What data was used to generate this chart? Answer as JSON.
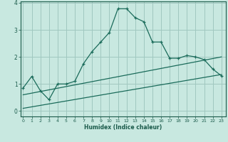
{
  "xlabel": "Humidex (Indice chaleur)",
  "background_color": "#c8e8e0",
  "line_color": "#1a6b5a",
  "grid_color": "#a0c8c0",
  "x_ticks": [
    0,
    1,
    2,
    3,
    4,
    5,
    6,
    7,
    8,
    9,
    10,
    11,
    12,
    13,
    14,
    15,
    16,
    17,
    18,
    19,
    20,
    21,
    22,
    23
  ],
  "y_ticks": [
    0,
    1,
    2,
    3,
    4
  ],
  "xlim": [
    -0.3,
    23.5
  ],
  "ylim": [
    -0.2,
    4.05
  ],
  "line1_x": [
    0,
    1,
    2,
    3,
    4,
    5,
    6,
    7,
    8,
    9,
    10,
    11,
    12,
    13,
    14,
    15,
    16,
    17,
    18,
    19,
    20,
    21,
    22,
    23
  ],
  "line1_y": [
    0.85,
    1.28,
    0.75,
    0.42,
    1.0,
    1.0,
    1.1,
    1.75,
    2.2,
    2.55,
    2.9,
    3.78,
    3.78,
    3.45,
    3.3,
    2.55,
    2.55,
    1.95,
    1.95,
    2.05,
    2.0,
    1.9,
    1.55,
    1.3
  ],
  "line2_x": [
    0,
    23
  ],
  "line2_y": [
    0.1,
    1.35
  ],
  "line3_x": [
    0,
    23
  ],
  "line3_y": [
    0.6,
    2.0
  ]
}
